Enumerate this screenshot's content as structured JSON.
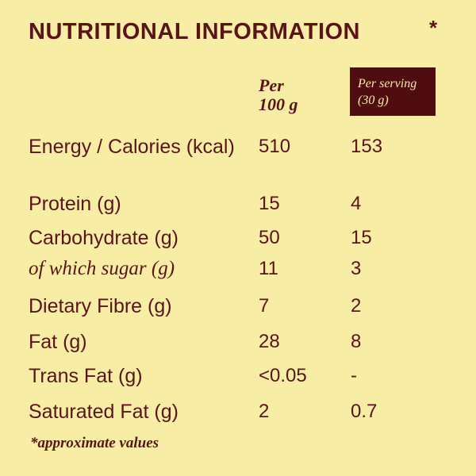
{
  "title": "NUTRITIONAL INFORMATION",
  "title_mark": "*",
  "columns": {
    "per_100g_line1": "Per",
    "per_100g_line2": "100 g",
    "per_serving_line1": "Per serving",
    "per_serving_line2": "(30 g)"
  },
  "rows": [
    {
      "label": "Energy / Calories (kcal)",
      "per_100g": "510",
      "per_serving": "153",
      "italic": false
    },
    {
      "label": "Protein (g)",
      "per_100g": "15",
      "per_serving": "4",
      "italic": false
    },
    {
      "label": "Carbohydrate (g)",
      "per_100g": "50",
      "per_serving": "15",
      "italic": false
    },
    {
      "label": "of which sugar (g)",
      "per_100g": "11",
      "per_serving": "3",
      "italic": true
    },
    {
      "label": "Dietary Fibre (g)",
      "per_100g": "7",
      "per_serving": "2",
      "italic": false
    },
    {
      "label": "Fat (g)",
      "per_100g": "28",
      "per_serving": "8",
      "italic": false
    },
    {
      "label": "Trans Fat (g)",
      "per_100g": "<0.05",
      "per_serving": "-",
      "italic": false
    },
    {
      "label": "Saturated Fat (g)",
      "per_100g": "2",
      "per_serving": "0.7",
      "italic": false
    }
  ],
  "footnote": "*approximate values",
  "colors": {
    "background": "#f7eda4",
    "text": "#5a1419",
    "header_box": "#4f0d12"
  }
}
